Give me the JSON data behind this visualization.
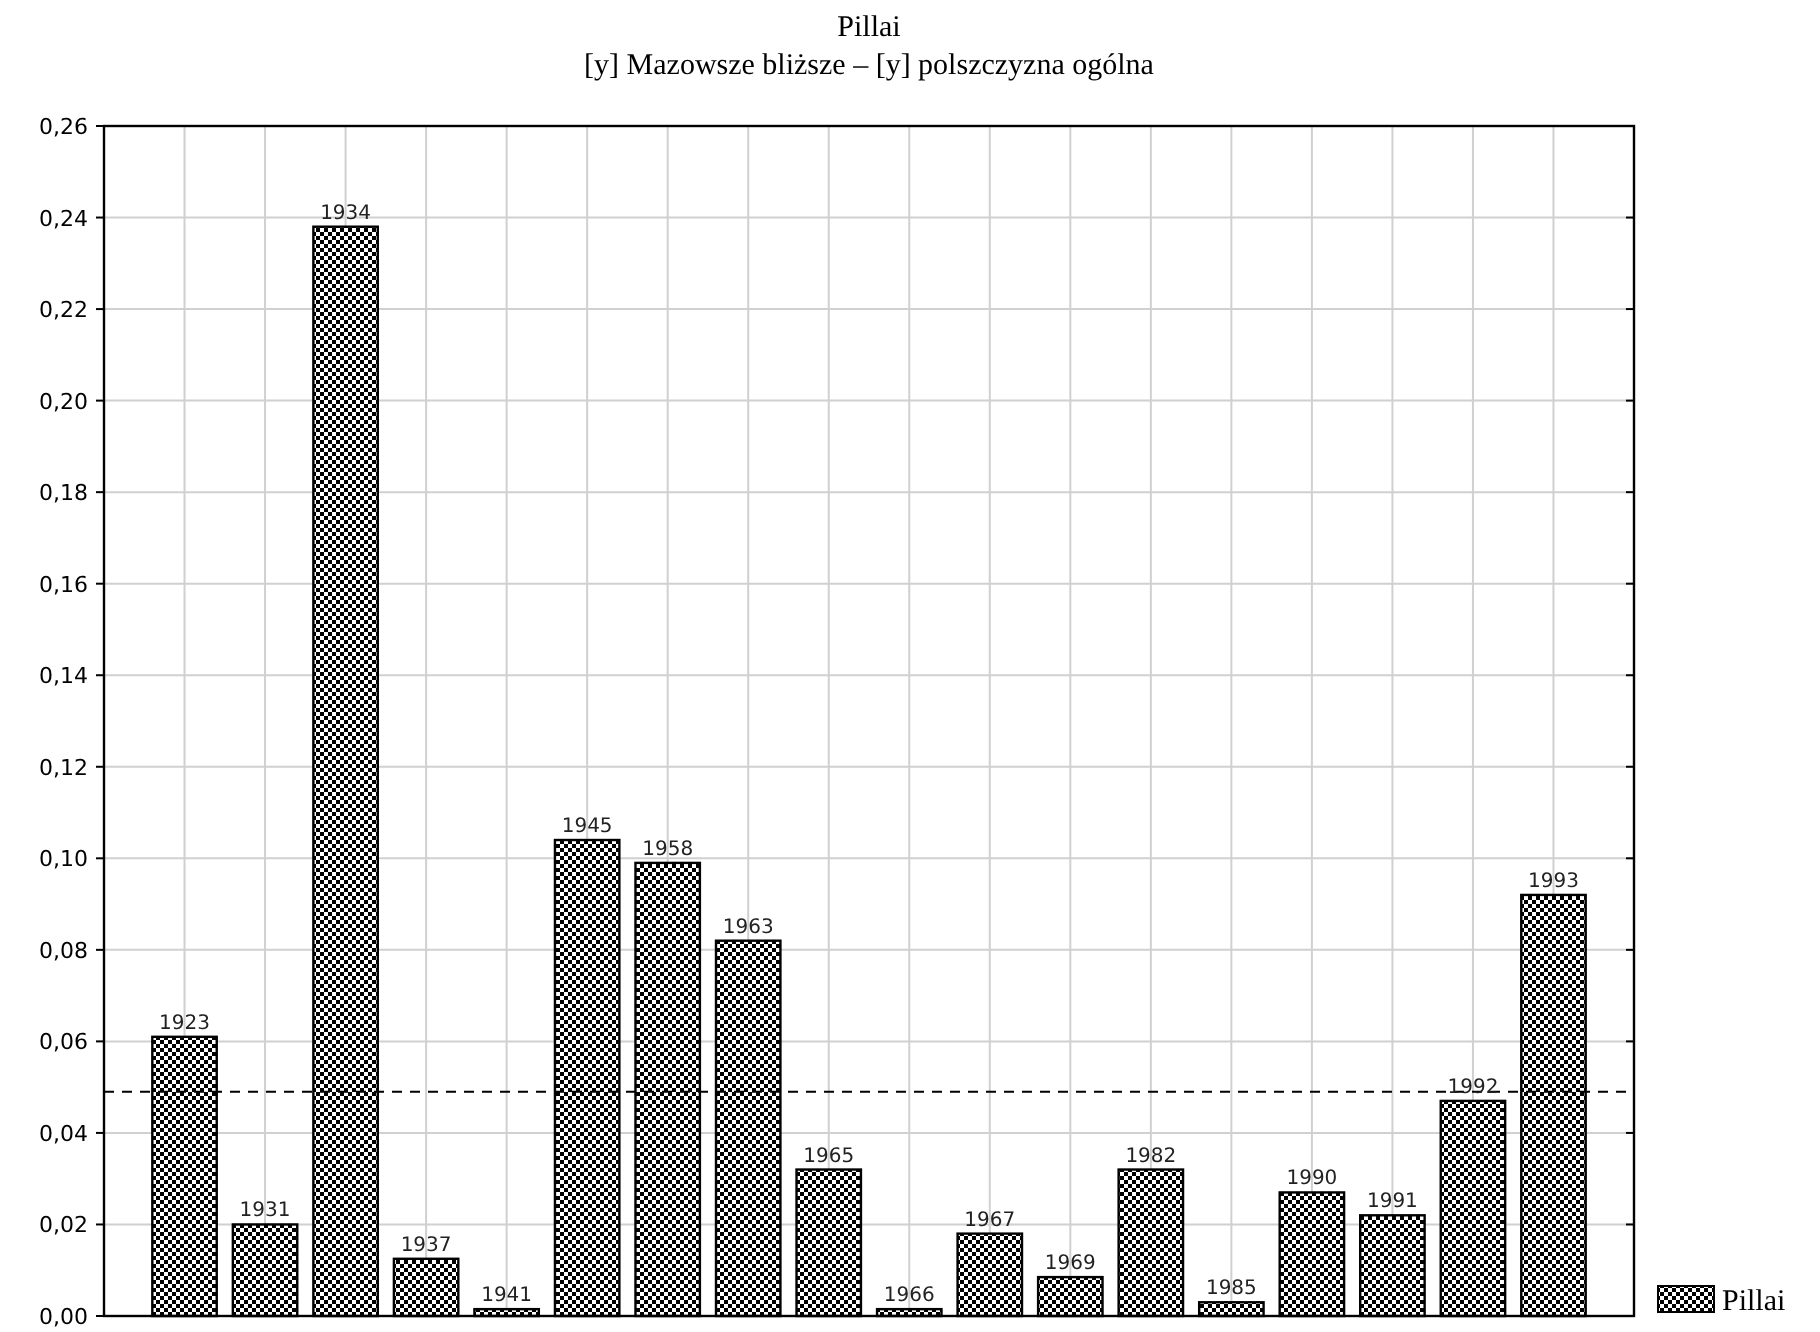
{
  "chart_data": {
    "type": "bar",
    "title": "Pillai",
    "subtitle": "[y] Mazowsze bliższe – [y] polszczyzna ogólna",
    "categories": [
      "1923",
      "1931",
      "1934",
      "1937",
      "1941",
      "1945",
      "1958",
      "1963",
      "1965",
      "1966",
      "1967",
      "1969",
      "1982",
      "1985",
      "1990",
      "1991",
      "1992",
      "1993"
    ],
    "series": [
      {
        "name": "Pillai",
        "color": "#000000",
        "values": [
          0.061,
          0.02,
          0.238,
          0.0125,
          0.0015,
          0.104,
          0.099,
          0.082,
          0.032,
          0.0015,
          0.018,
          0.0085,
          0.032,
          0.003,
          0.027,
          0.022,
          0.047,
          0.092
        ]
      }
    ],
    "ylim": [
      0,
      0.26
    ],
    "yticks": [
      {
        "value": 0,
        "label": "0,00"
      },
      {
        "value": 0.02,
        "label": "0,02"
      },
      {
        "value": 0.04,
        "label": "0,04"
      },
      {
        "value": 0.06,
        "label": "0,06"
      },
      {
        "value": 0.08,
        "label": "0,08"
      },
      {
        "value": 0.1,
        "label": "0,10"
      },
      {
        "value": 0.12,
        "label": "0,12"
      },
      {
        "value": 0.14,
        "label": "0,14"
      },
      {
        "value": 0.16,
        "label": "0,16"
      },
      {
        "value": 0.18,
        "label": "0,18"
      },
      {
        "value": 0.2,
        "label": "0,20"
      },
      {
        "value": 0.22,
        "label": "0,22"
      },
      {
        "value": 0.24,
        "label": "0,24"
      },
      {
        "value": 0.26,
        "label": "0,26"
      }
    ],
    "ref_lines": [
      {
        "axis": "y",
        "value": 0.049,
        "color": "#000000",
        "line_style": "dashed"
      }
    ],
    "grid": true,
    "legend": "bottom right"
  }
}
